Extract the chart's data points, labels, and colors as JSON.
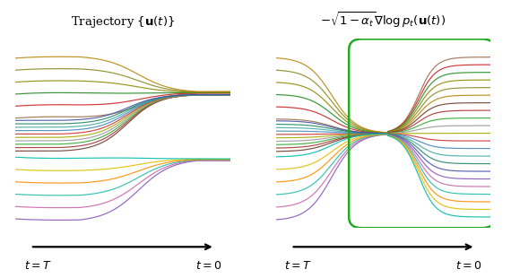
{
  "title_left": "Trajectory $\\{\\mathbf{u}(t)\\}$",
  "title_right": "$-\\sqrt{1-\\alpha_t}\\nabla \\log p_t(\\mathbf{u}(t))$",
  "xlabel_left_start": "$t = T$",
  "xlabel_left_end": "$t = 0$",
  "xlabel_right_start": "$t = T$",
  "xlabel_right_end": "$t = 0$",
  "background_color": "#ffffff",
  "upper_colors": [
    "#9B6B4A",
    "#CC2222",
    "#228B22",
    "#556B2F",
    "#888820",
    "#8B7355"
  ],
  "middle_colors": [
    "#6B4226",
    "#AA3333",
    "#22AA22",
    "#808080",
    "#AAAA00",
    "#AA2222",
    "#4488BB",
    "#44AAAA",
    "#228866",
    "#4455AA"
  ],
  "lower_colors": [
    "#8855AA",
    "#CC66AA",
    "#22AAAA",
    "#FF8800",
    "#DDAA00",
    "#00CCAA"
  ],
  "border_color": "#22AA22",
  "n_upper": 6,
  "n_middle": 10,
  "n_lower": 6
}
